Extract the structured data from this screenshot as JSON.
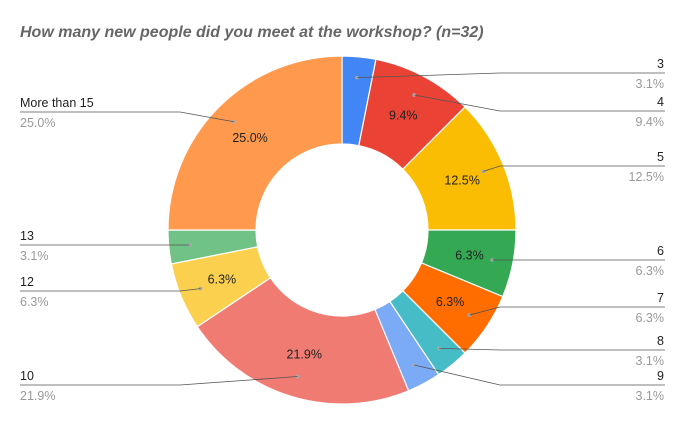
{
  "chart_data": {
    "type": "pie",
    "title": "How many new people did you meet at the workshop? (n=32)",
    "donut": true,
    "slices": [
      {
        "label": "3",
        "value": 1,
        "percent": "3.1%",
        "color": "#4285F4"
      },
      {
        "label": "4",
        "value": 3,
        "percent": "9.4%",
        "color": "#EA4335"
      },
      {
        "label": "5",
        "value": 4,
        "percent": "12.5%",
        "color": "#FBBC04"
      },
      {
        "label": "6",
        "value": 2,
        "percent": "6.3%",
        "color": "#34A853"
      },
      {
        "label": "7",
        "value": 2,
        "percent": "6.3%",
        "color": "#FF6D01"
      },
      {
        "label": "8",
        "value": 1,
        "percent": "3.1%",
        "color": "#46BDC6"
      },
      {
        "label": "9",
        "value": 1,
        "percent": "3.1%",
        "color": "#7BAAF7"
      },
      {
        "label": "10",
        "value": 7,
        "percent": "21.9%",
        "color": "#F07B72"
      },
      {
        "label": "12",
        "value": 2,
        "percent": "6.3%",
        "color": "#FCD04F"
      },
      {
        "label": "13",
        "value": 1,
        "percent": "3.1%",
        "color": "#71C287"
      },
      {
        "label": "More than 15",
        "value": 8,
        "percent": "25.0%",
        "color": "#FF994D"
      }
    ]
  }
}
